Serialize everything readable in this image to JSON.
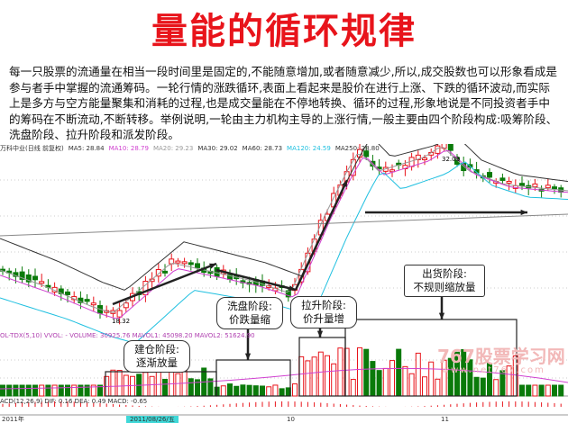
{
  "title": "量能的循环规律",
  "paragraph": "每一只股票的流通量在相当一段时间里是固定的,不能随意增加,或者随意减少,所以,成交股数也可以形象看成是参与者手中掌握的流通筹码。一轮行情的涨跌循环,表面上看起来是股价在进行上涨、下跌的循环波动,而实际上是多方与空方能量聚集和消耗的过程,也是成交量能在不停地转换、循环的过程,形象地说是不同投资者手中的筹码在不断流动,不断转移。举例说明,一轮由主力机构主导的上涨行情,一般主要由四个阶段构成:吸筹阶段、洗盘阶段、拉升阶段和派发阶段。",
  "chart": {
    "stock_label": "万科中业(日线 前复权)",
    "ma": [
      {
        "t": "MA5: 28.84",
        "c": "#333"
      },
      {
        "t": "MA10: 28.79",
        "c": "#d040d0"
      },
      {
        "t": "MA20: 29.23",
        "c": "#999"
      },
      {
        "t": "MA30: 29.02",
        "c": "#333"
      },
      {
        "t": "MA60: 28.73",
        "c": "#333"
      },
      {
        "t": "MA120: 24.59",
        "c": "#20c0e0"
      },
      {
        "t": "MA250: 28.80",
        "c": "#333"
      }
    ],
    "high_label": "32.03",
    "low_label": "18.32",
    "volume_label": "OL-TDX(5,10) VVOL: -  VOLUME: 30925.76  MAVOL1: 45098.20  MAVOL2: 51624.90",
    "macd_label": "ACD(12,26,9) DIF: 0.16  DEA: 0.49  MACD: -0.65",
    "dates": [
      "2011年",
      "2011/08/26/五",
      "10",
      "11"
    ],
    "colors": {
      "up": "#e8141b",
      "down": "#0a7a0a"
    },
    "callouts": {
      "accumulate": [
        "建仓阶段:",
        "逐渐放量"
      ],
      "wash": [
        "洗盘阶段:",
        "价跌量缩"
      ],
      "rise": [
        "拉升阶段:",
        "价升量增"
      ],
      "distribute": [
        "出货阶段:",
        "不规则缩放量"
      ]
    },
    "watermark": [
      "767股票学习网",
      "www.net767.com"
    ]
  }
}
